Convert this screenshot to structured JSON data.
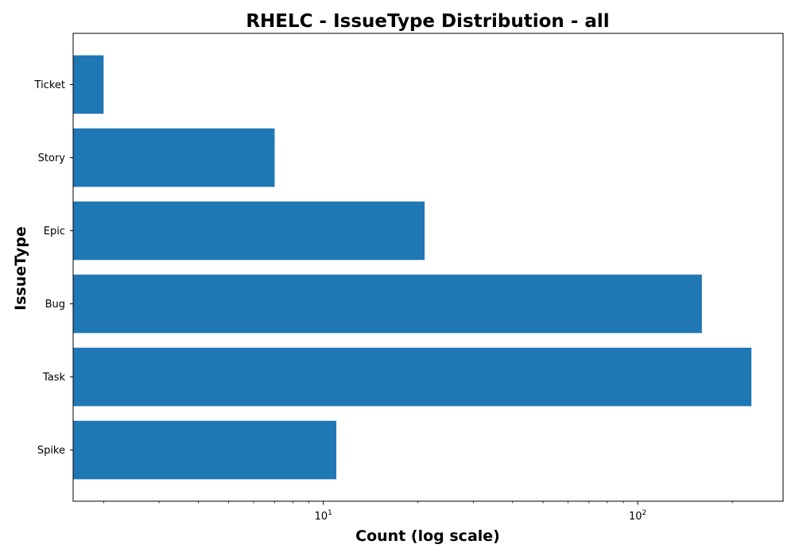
{
  "chart_data": {
    "type": "bar",
    "orientation": "horizontal",
    "title": "RHELC - IssueType Distribution - all",
    "xlabel": "Count (log scale)",
    "ylabel": "IssueType",
    "x_scale": "log",
    "xlim": [
      1.6,
      290
    ],
    "categories": [
      "Spike",
      "Task",
      "Bug",
      "Epic",
      "Story",
      "Ticket"
    ],
    "values": [
      11,
      230,
      160,
      21,
      7,
      2
    ],
    "x_major_ticks": [
      {
        "base": "10",
        "exp": "1",
        "value": 10
      },
      {
        "base": "10",
        "exp": "2",
        "value": 100
      }
    ],
    "bar_color": "#1f77b4",
    "grid": false,
    "legend": "none"
  }
}
